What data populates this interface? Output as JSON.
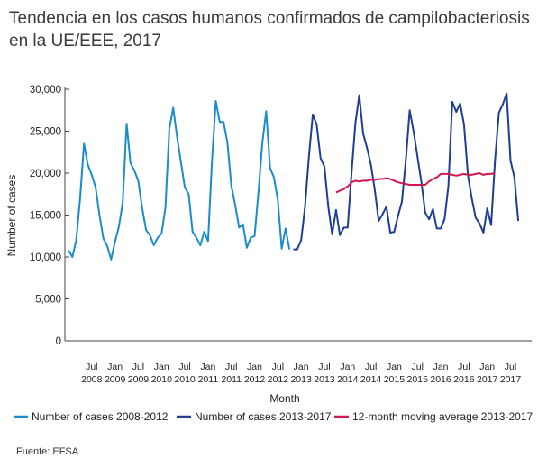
{
  "page": {
    "title": "Tendencia en los casos humanos confirmados de campilobacteriosis en la UE/EEE, 2017",
    "source": "Fuente: EFSA"
  },
  "chart_data": {
    "type": "line",
    "title": "Tendencia en los casos humanos confirmados de campilobacteriosis en la UE/EEE, 2017",
    "xlabel": "Month",
    "ylabel": "Number of cases",
    "ylim": [
      0,
      30000
    ],
    "y_ticks": [
      0,
      5000,
      10000,
      15000,
      20000,
      25000,
      30000
    ],
    "y_tick_labels": [
      "0",
      "5,000",
      "10,000",
      "15,000",
      "20,000",
      "25,000",
      "30,000"
    ],
    "x_ticks": [
      {
        "index": 6,
        "month": "Jul",
        "year": "2008"
      },
      {
        "index": 12,
        "month": "Jan",
        "year": "2009"
      },
      {
        "index": 18,
        "month": "Jul",
        "year": "2009"
      },
      {
        "index": 24,
        "month": "Jan",
        "year": "2010"
      },
      {
        "index": 30,
        "month": "Jul",
        "year": "2010"
      },
      {
        "index": 36,
        "month": "Jan",
        "year": "2011"
      },
      {
        "index": 42,
        "month": "Jul",
        "year": "2011"
      },
      {
        "index": 48,
        "month": "Jan",
        "year": "2012"
      },
      {
        "index": 54,
        "month": "Jul",
        "year": "2012"
      },
      {
        "index": 60,
        "month": "Jan",
        "year": "2013"
      },
      {
        "index": 66,
        "month": "Jul",
        "year": "2013"
      },
      {
        "index": 72,
        "month": "Jan",
        "year": "2014"
      },
      {
        "index": 78,
        "month": "Jul",
        "year": "2014"
      },
      {
        "index": 84,
        "month": "Jan",
        "year": "2015"
      },
      {
        "index": 90,
        "month": "Jul",
        "year": "2015"
      },
      {
        "index": 96,
        "month": "Jan",
        "year": "2016"
      },
      {
        "index": 102,
        "month": "Jul",
        "year": "2016"
      },
      {
        "index": 108,
        "month": "Jan",
        "year": "2017"
      },
      {
        "index": 114,
        "month": "Jul",
        "year": "2017"
      }
    ],
    "x_count": 120,
    "legend_position": "bottom",
    "grid": false,
    "series": [
      {
        "name": "Number of cases 2008-2012",
        "color": "#1a8ccc",
        "start_index": 0,
        "values": [
          10800,
          10000,
          12000,
          17000,
          23500,
          21000,
          19800,
          18300,
          15000,
          12200,
          11300,
          9700,
          11800,
          13600,
          16500,
          25900,
          21200,
          20300,
          19100,
          15900,
          13200,
          12600,
          11400,
          12300,
          12800,
          15900,
          25300,
          27800,
          24300,
          21300,
          18300,
          17500,
          13000,
          12300,
          11400,
          13000,
          11900,
          21400,
          28600,
          26100,
          26100,
          23600,
          18500,
          16200,
          13500,
          13900,
          11100,
          12300,
          12500,
          17700,
          23600,
          27400,
          20600,
          19500,
          16800,
          11000,
          13400,
          10900
        ]
      },
      {
        "name": "Number of cases 2013-2017",
        "color": "#1e3f91",
        "start_index": 58,
        "values": [
          10900,
          10900,
          12000,
          16000,
          22000,
          27000,
          25800,
          21800,
          20800,
          16000,
          12700,
          15600,
          12600,
          13500,
          13500,
          20000,
          26000,
          29300,
          24700,
          23000,
          21000,
          18000,
          14300,
          15100,
          16000,
          12900,
          13000,
          14900,
          16600,
          21500,
          27500,
          25000,
          22000,
          19000,
          15300,
          14500,
          15700,
          13400,
          13400,
          14500,
          18500,
          28500,
          27300,
          28300,
          25800,
          19800,
          17000,
          14700,
          14000,
          12900,
          15800,
          13800,
          21500,
          27200,
          28200,
          29500,
          21500,
          19500,
          14300
        ]
      },
      {
        "name": "12-month moving average 2013-2017",
        "color": "#d3174f",
        "start_index": 69,
        "values": [
          17700,
          17900,
          18100,
          18400,
          18900,
          19100,
          19000,
          19100,
          19100,
          19200,
          19200,
          19300,
          19300,
          19400,
          19300,
          19100,
          18900,
          18800,
          18700,
          18600,
          18600,
          18600,
          18600,
          18600,
          19000,
          19300,
          19500,
          19900,
          19900,
          19900,
          19800,
          19700,
          19800,
          19900,
          19800,
          19800,
          19900,
          20000,
          19800,
          19900,
          19900,
          20000
        ]
      }
    ]
  }
}
